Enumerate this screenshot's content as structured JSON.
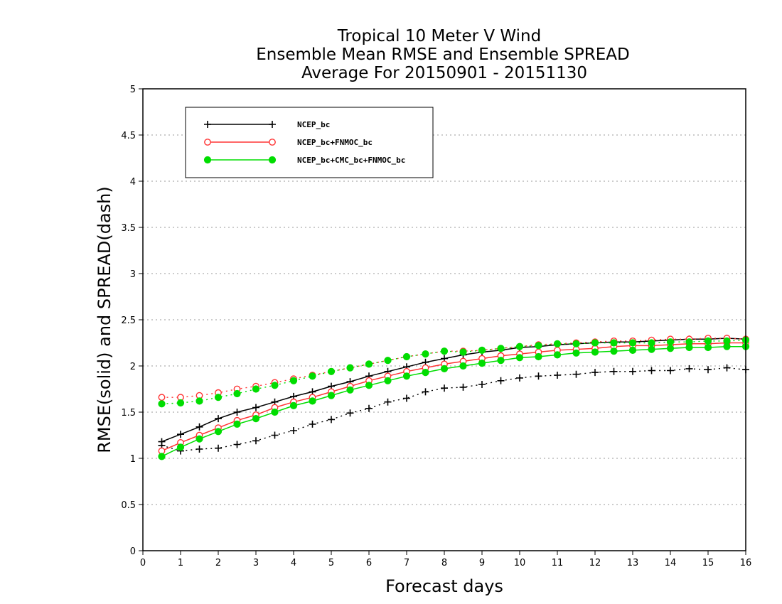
{
  "chart_data": {
    "type": "line",
    "title": [
      "Tropical 10 Meter V Wind",
      "Ensemble Mean RMSE and Ensemble SPREAD",
      "Average For 20150901 - 20151130"
    ],
    "xlabel": "Forecast days",
    "ylabel": "RMSE(solid) and SPREAD(dash)",
    "xlim": [
      0,
      16
    ],
    "ylim": [
      0,
      5
    ],
    "xticks": [
      "0",
      "1",
      "2",
      "3",
      "4",
      "5",
      "6",
      "7",
      "8",
      "9",
      "10",
      "11",
      "12",
      "13",
      "14",
      "15",
      "16"
    ],
    "yticks": [
      "0",
      "0.5",
      "1",
      "1.5",
      "2",
      "2.5",
      "3",
      "3.5",
      "4",
      "4.5",
      "5"
    ],
    "grid": "horizontal dotted",
    "legend_position": "top-left",
    "x": [
      0.5,
      1,
      1.5,
      2,
      2.5,
      3,
      3.5,
      4,
      4.5,
      5,
      5.5,
      6,
      6.5,
      7,
      7.5,
      8,
      8.5,
      9,
      9.5,
      10,
      10.5,
      11,
      11.5,
      12,
      12.5,
      13,
      13.5,
      14,
      14.5,
      15,
      15.5,
      16
    ],
    "series": [
      {
        "name": "NCEP_bc",
        "color": "#000000",
        "marker": "plus",
        "rmse": [
          1.18,
          1.26,
          1.34,
          1.43,
          1.5,
          1.55,
          1.61,
          1.67,
          1.72,
          1.78,
          1.83,
          1.89,
          1.94,
          1.99,
          2.04,
          2.08,
          2.12,
          2.15,
          2.17,
          2.2,
          2.21,
          2.23,
          2.24,
          2.25,
          2.26,
          2.26,
          2.27,
          2.28,
          2.29,
          2.29,
          2.3,
          2.29
        ],
        "spread": [
          1.14,
          1.08,
          1.1,
          1.11,
          1.15,
          1.19,
          1.25,
          1.3,
          1.37,
          1.42,
          1.49,
          1.54,
          1.61,
          1.65,
          1.72,
          1.76,
          1.77,
          1.8,
          1.84,
          1.87,
          1.89,
          1.9,
          1.91,
          1.93,
          1.94,
          1.94,
          1.95,
          1.95,
          1.97,
          1.96,
          1.98,
          1.96
        ]
      },
      {
        "name": "NCEP_bc+FNMOC_bc",
        "color": "#ff3333",
        "marker": "open-circle",
        "rmse": [
          1.08,
          1.17,
          1.25,
          1.33,
          1.41,
          1.47,
          1.55,
          1.61,
          1.66,
          1.72,
          1.78,
          1.84,
          1.89,
          1.94,
          1.98,
          2.02,
          2.05,
          2.08,
          2.11,
          2.13,
          2.15,
          2.17,
          2.18,
          2.19,
          2.21,
          2.22,
          2.22,
          2.23,
          2.24,
          2.24,
          2.25,
          2.25
        ],
        "spread": [
          1.66,
          1.66,
          1.68,
          1.71,
          1.75,
          1.78,
          1.82,
          1.86,
          1.9,
          1.94,
          1.98,
          2.02,
          2.06,
          2.1,
          2.13,
          2.16,
          2.16,
          2.17,
          2.19,
          2.21,
          2.23,
          2.24,
          2.25,
          2.26,
          2.27,
          2.27,
          2.28,
          2.29,
          2.29,
          2.3,
          2.3,
          2.29
        ]
      },
      {
        "name": "NCEP_bc+CMC_bc+FNMOC_bc",
        "color": "#00dd00",
        "marker": "filled-circle",
        "rmse": [
          1.02,
          1.12,
          1.21,
          1.29,
          1.37,
          1.43,
          1.5,
          1.57,
          1.62,
          1.68,
          1.74,
          1.79,
          1.84,
          1.89,
          1.93,
          1.97,
          2.0,
          2.03,
          2.06,
          2.09,
          2.1,
          2.12,
          2.14,
          2.15,
          2.16,
          2.17,
          2.18,
          2.19,
          2.2,
          2.2,
          2.21,
          2.21
        ],
        "spread": [
          1.59,
          1.6,
          1.62,
          1.66,
          1.7,
          1.75,
          1.79,
          1.84,
          1.89,
          1.94,
          1.98,
          2.02,
          2.06,
          2.1,
          2.13,
          2.16,
          2.15,
          2.17,
          2.19,
          2.21,
          2.22,
          2.24,
          2.24,
          2.25,
          2.25,
          2.25,
          2.25,
          2.26,
          2.26,
          2.27,
          2.27,
          2.28
        ]
      }
    ]
  }
}
